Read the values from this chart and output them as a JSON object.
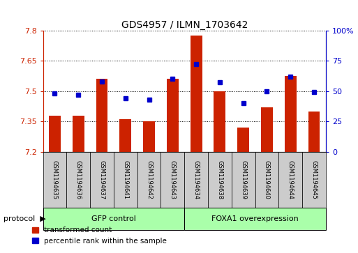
{
  "title": "GDS4957 / ILMN_1703642",
  "samples": [
    "GSM1194635",
    "GSM1194636",
    "GSM1194637",
    "GSM1194641",
    "GSM1194642",
    "GSM1194643",
    "GSM1194634",
    "GSM1194638",
    "GSM1194639",
    "GSM1194640",
    "GSM1194644",
    "GSM1194645"
  ],
  "red_values": [
    7.38,
    7.38,
    7.56,
    7.36,
    7.35,
    7.56,
    7.775,
    7.5,
    7.32,
    7.42,
    7.575,
    7.4
  ],
  "blue_values_pct": [
    48,
    47,
    58,
    44,
    43,
    60,
    72,
    57,
    40,
    50,
    62,
    49
  ],
  "y_min": 7.2,
  "y_max": 7.8,
  "y_ticks": [
    7.2,
    7.35,
    7.5,
    7.65,
    7.8
  ],
  "y2_ticks": [
    0,
    25,
    50,
    75,
    100
  ],
  "group1_label": "GFP control",
  "group2_label": "FOXA1 overexpression",
  "group1_count": 6,
  "group2_count": 6,
  "bar_color": "#cc2200",
  "dot_color": "#0000cc",
  "group_bg": "#aaffaa",
  "sample_bg": "#cccccc",
  "legend_red_label": "transformed count",
  "legend_blue_label": "percentile rank within the sample",
  "bar_width": 0.5,
  "base_value": 7.2
}
